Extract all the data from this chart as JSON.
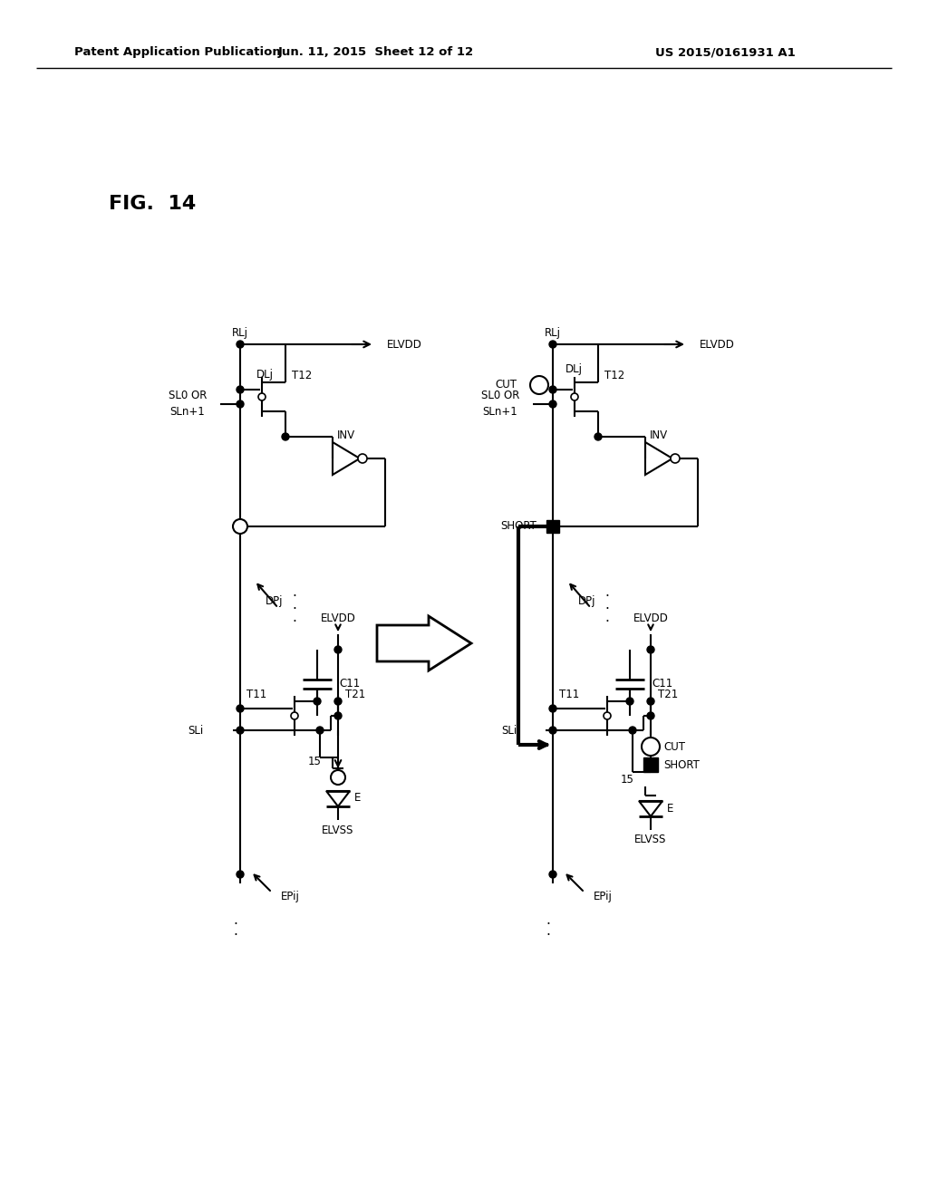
{
  "header_left": "Patent Application Publication",
  "header_center": "Jun. 11, 2015  Sheet 12 of 12",
  "header_right": "US 2015/0161931 A1",
  "fig_label": "FIG.  14",
  "bg_color": "#ffffff"
}
